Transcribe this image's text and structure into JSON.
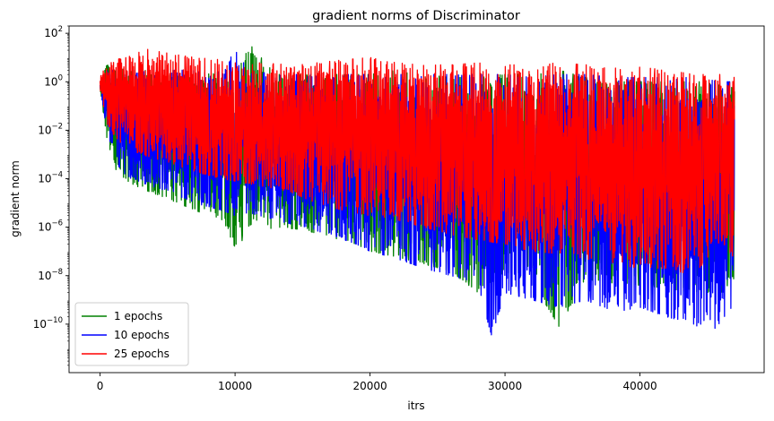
{
  "chart_data": {
    "type": "line",
    "title": "gradient norms of Discriminator",
    "xlabel": "itrs",
    "ylabel": "gradient norm",
    "xlim": [
      -2300,
      49200
    ],
    "ylim": [
      1e-12,
      200
    ],
    "yscale": "log",
    "grid": false,
    "legend_position": "lower-left",
    "x_ticks": [
      0,
      10000,
      20000,
      30000,
      40000
    ],
    "x_tick_labels": [
      "0",
      "10000",
      "20000",
      "30000",
      "40000"
    ],
    "y_ticks": [
      1e-10,
      1e-08,
      1e-06,
      0.0001,
      0.01,
      1,
      100
    ],
    "y_tick_labels": [
      {
        "base": "10",
        "exp": "−10"
      },
      {
        "base": "10",
        "exp": "−8"
      },
      {
        "base": "10",
        "exp": "−6"
      },
      {
        "base": "10",
        "exp": "−4"
      },
      {
        "base": "10",
        "exp": "−2"
      },
      {
        "base": "10",
        "exp": "0"
      },
      {
        "base": "10",
        "exp": "2"
      }
    ],
    "series": [
      {
        "name": "1 epochs",
        "color": "#008000",
        "x": [
          0,
          500,
          1000,
          2000,
          3000,
          5000,
          7000,
          9000,
          10000,
          11000,
          13000,
          15000,
          17000,
          19000,
          20000,
          22000,
          24000,
          26000,
          28000,
          30000,
          32000,
          34000,
          36000,
          38000,
          40000,
          42000,
          44000,
          46000,
          47000
        ],
        "upper": [
          1,
          5,
          4,
          3,
          3,
          2.5,
          2.5,
          2.5,
          2,
          40,
          2,
          2,
          2,
          2,
          2,
          3,
          2,
          1.5,
          1.5,
          2,
          2,
          3,
          1.5,
          1,
          1,
          1,
          1,
          1,
          0.5
        ],
        "lower": [
          0.5,
          0.005,
          0.0003,
          8e-05,
          4e-05,
          1.5e-05,
          5e-06,
          2e-06,
          1.5e-07,
          5e-07,
          1e-06,
          8e-07,
          4e-07,
          2e-07,
          1e-07,
          6e-08,
          3e-08,
          1.5e-08,
          2e-09,
          1.5e-08,
          6e-09,
          8e-11,
          7e-09,
          5e-09,
          4e-09,
          3e-09,
          2e-09,
          2e-09,
          8e-09
        ]
      },
      {
        "name": "10 epochs",
        "color": "#0000ff",
        "x": [
          0,
          500,
          1000,
          2000,
          3000,
          5000,
          7000,
          9000,
          10000,
          11000,
          13000,
          15000,
          17000,
          19000,
          20000,
          22000,
          24000,
          26000,
          28000,
          29000,
          30000,
          32000,
          34000,
          36000,
          38000,
          40000,
          42000,
          44000,
          46000,
          47000
        ],
        "upper": [
          1,
          4,
          3,
          3,
          3,
          3,
          3,
          2.5,
          30,
          3,
          2,
          2,
          2,
          2,
          2,
          2,
          2,
          2,
          2,
          2,
          2,
          1.5,
          2,
          2,
          1.5,
          1.5,
          1.5,
          1.5,
          1,
          1
        ],
        "lower": [
          0.5,
          0.01,
          0.0006,
          0.00012,
          7e-05,
          3e-05,
          1e-05,
          5e-06,
          3e-06,
          4e-06,
          2e-06,
          1e-06,
          5e-07,
          2e-07,
          1e-07,
          5e-08,
          2e-08,
          1e-08,
          5e-09,
          3e-11,
          2e-09,
          1e-09,
          5e-10,
          1e-09,
          3e-10,
          5e-10,
          2e-10,
          1e-10,
          2e-11,
          1e-09
        ]
      },
      {
        "name": "25 epochs",
        "color": "#ff0000",
        "x": [
          0,
          500,
          1000,
          2000,
          3000,
          5000,
          7000,
          9000,
          10000,
          12000,
          14000,
          16000,
          18000,
          20000,
          22000,
          24000,
          26000,
          28000,
          30000,
          32000,
          34000,
          36000,
          38000,
          40000,
          42000,
          44000,
          46000,
          47000
        ],
        "upper": [
          2,
          4,
          8,
          10,
          25,
          15,
          10,
          8,
          6,
          6,
          5,
          6,
          8,
          10,
          6,
          5,
          5,
          6,
          5,
          5,
          6,
          5,
          4,
          4,
          3,
          2,
          2,
          1.5
        ],
        "lower": [
          0.5,
          0.02,
          0.005,
          0.002,
          0.001,
          0.0005,
          0.0002,
          0.0001,
          8e-05,
          5e-05,
          3e-05,
          1e-05,
          5e-06,
          3e-06,
          2e-06,
          1e-06,
          5e-07,
          3e-07,
          2e-07,
          1e-07,
          8e-08,
          5e-08,
          3e-08,
          2e-08,
          2e-08,
          1e-08,
          3e-07,
          5e-08
        ]
      }
    ]
  }
}
